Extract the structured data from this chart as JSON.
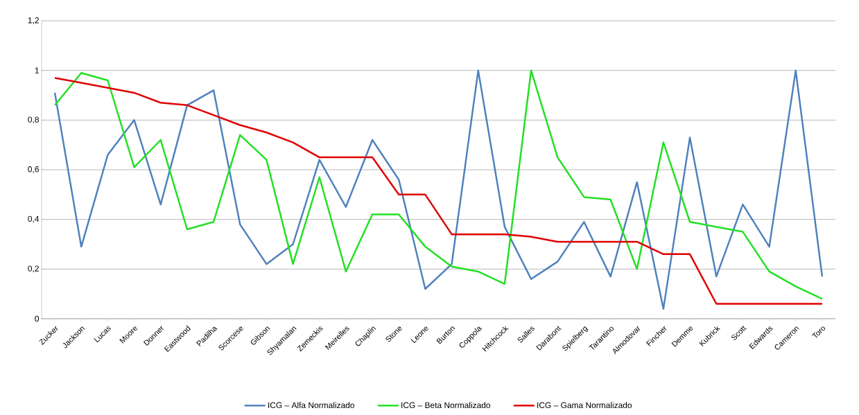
{
  "chart_data": {
    "type": "line",
    "categories": [
      "Zucker",
      "Jackson",
      "Lucas",
      "Moore",
      "Donner",
      "Eastwood",
      "Padilha",
      "Scorcese",
      "Gibson",
      "Shyamalan",
      "Zemeckis",
      "Meirelles",
      "Chaplin",
      "Stone",
      "Leone",
      "Burton",
      "Coppola",
      "Hitchcock",
      "Salles",
      "Darabont",
      "Spielberg",
      "Tarantino",
      "Almodovar",
      "Fincher",
      "Demme",
      "Kubrick",
      "Scott",
      "Edwards",
      "Cameron",
      "Toro"
    ],
    "series": [
      {
        "name": "ICG – Alfa Normalizado",
        "color": "#4f81bd",
        "values": [
          0.91,
          0.29,
          0.66,
          0.8,
          0.46,
          0.86,
          0.92,
          0.38,
          0.22,
          0.3,
          0.64,
          0.45,
          0.72,
          0.56,
          0.12,
          0.22,
          1.0,
          0.37,
          0.16,
          0.23,
          0.39,
          0.17,
          0.55,
          0.04,
          0.73,
          0.17,
          0.46,
          0.29,
          1.0,
          0.17
        ]
      },
      {
        "name": "ICG – Beta Normalizado",
        "color": "#22e022",
        "values": [
          0.86,
          0.99,
          0.96,
          0.61,
          0.72,
          0.36,
          0.39,
          0.74,
          0.64,
          0.22,
          0.57,
          0.19,
          0.42,
          0.42,
          0.29,
          0.21,
          0.19,
          0.14,
          1.0,
          0.65,
          0.49,
          0.48,
          0.2,
          0.71,
          0.39,
          0.37,
          0.35,
          0.19,
          0.13,
          0.08
        ]
      },
      {
        "name": "ICG – Gama Normalizado",
        "color": "#e00000",
        "values": [
          0.97,
          0.95,
          0.93,
          0.91,
          0.87,
          0.86,
          0.82,
          0.78,
          0.75,
          0.71,
          0.65,
          0.65,
          0.65,
          0.5,
          0.5,
          0.34,
          0.34,
          0.34,
          0.33,
          0.31,
          0.31,
          0.31,
          0.31,
          0.26,
          0.26,
          0.06,
          0.06,
          0.06,
          0.06,
          0.06
        ]
      }
    ],
    "ylim": [
      0,
      1.2
    ],
    "yticks": [
      {
        "value": 0,
        "label": "0"
      },
      {
        "value": 0.2,
        "label": "0,2"
      },
      {
        "value": 0.4,
        "label": "0,4"
      },
      {
        "value": 0.6,
        "label": "0,6"
      },
      {
        "value": 0.8,
        "label": "0,8"
      },
      {
        "value": 1,
        "label": "1"
      },
      {
        "value": 1.2,
        "label": "1,2"
      }
    ],
    "grid": "y",
    "legend": "bottom",
    "marker": "none",
    "line_style": "solid"
  }
}
